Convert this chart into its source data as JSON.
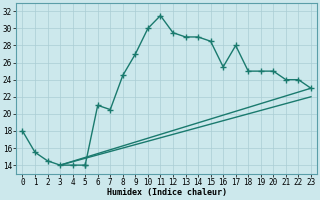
{
  "title": "",
  "xlabel": "Humidex (Indice chaleur)",
  "bg_color": "#cce8ec",
  "grid_color": "#aacdd4",
  "line_color": "#1a7a6e",
  "xlim": [
    -0.5,
    23.5
  ],
  "ylim": [
    13,
    33
  ],
  "xticks": [
    0,
    1,
    2,
    3,
    4,
    5,
    6,
    7,
    8,
    9,
    10,
    11,
    12,
    13,
    14,
    15,
    16,
    17,
    18,
    19,
    20,
    21,
    22,
    23
  ],
  "yticks": [
    14,
    16,
    18,
    20,
    22,
    24,
    26,
    28,
    30,
    32
  ],
  "curve1_x": [
    0,
    1,
    2,
    3,
    4,
    5,
    5,
    6,
    7,
    8,
    9,
    10,
    11,
    12,
    13,
    14,
    15,
    16,
    17,
    18,
    19,
    20,
    21,
    22,
    23
  ],
  "curve1_y": [
    18,
    15.5,
    14.5,
    14,
    14,
    14,
    14,
    21,
    20.5,
    24.5,
    27,
    30,
    31.5,
    29.5,
    29,
    29,
    28.5,
    25.5,
    28,
    25,
    25,
    25,
    24,
    24,
    23
  ],
  "curve2_x": [
    3,
    23
  ],
  "curve2_y": [
    14,
    23
  ],
  "curve3_x": [
    3,
    23
  ],
  "curve3_y": [
    14,
    22
  ],
  "marker": "+",
  "markersize": 4,
  "linewidth": 1.0,
  "axis_fontsize": 6,
  "tick_fontsize": 5.5
}
